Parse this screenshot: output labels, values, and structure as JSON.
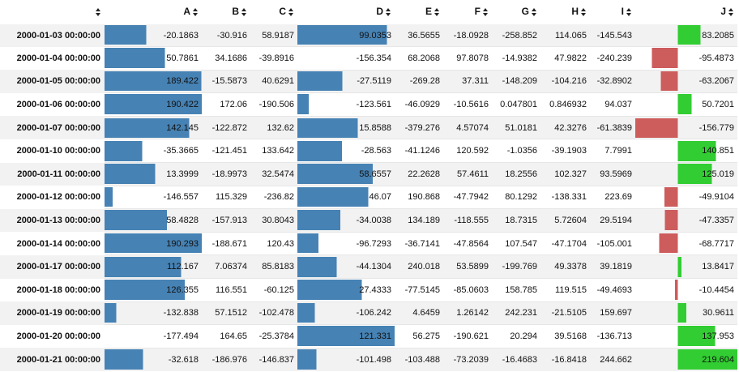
{
  "columns": [
    "A",
    "B",
    "C",
    "D",
    "E",
    "F",
    "G",
    "H",
    "I",
    "J"
  ],
  "colors": {
    "bar_positive_blue": "#4682b4",
    "bar_negative_red": "#cd5c5c",
    "bar_positive_green": "#32cd32"
  },
  "bar_columns": {
    "A": {
      "min": -177.494,
      "max": 190.422,
      "colors": [
        "#4682b4"
      ]
    },
    "D": {
      "min": -156.354,
      "max": 121.331,
      "colors": [
        "#4682b4"
      ]
    },
    "J": {
      "min": -156.779,
      "max": 219.604,
      "colors": [
        "#cd5c5c",
        "#32cd32"
      ],
      "mid": 0
    }
  },
  "rows": [
    {
      "index": "2000-01-03 00:00:00",
      "values": [
        "-20.1863",
        "-30.916",
        "58.9187",
        "99.0353",
        "36.5655",
        "-18.0928",
        "-258.852",
        "114.065",
        "-145.543",
        "83.2085"
      ]
    },
    {
      "index": "2000-01-04 00:00:00",
      "values": [
        "50.7861",
        "34.1686",
        "-39.8916",
        "-156.354",
        "68.2068",
        "97.8078",
        "-14.9382",
        "47.9822",
        "-240.239",
        "-95.4873"
      ]
    },
    {
      "index": "2000-01-05 00:00:00",
      "values": [
        "189.422",
        "-15.5873",
        "40.6291",
        "-27.5119",
        "-269.28",
        "37.311",
        "-148.209",
        "-104.216",
        "-32.8902",
        "-63.2067"
      ]
    },
    {
      "index": "2000-01-06 00:00:00",
      "values": [
        "190.422",
        "172.06",
        "-190.506",
        "-123.561",
        "-46.0929",
        "-10.5616",
        "0.047801",
        "0.846932",
        "94.037",
        "50.7201"
      ]
    },
    {
      "index": "2000-01-07 00:00:00",
      "values": [
        "142.145",
        "-122.872",
        "132.62",
        "15.8588",
        "-379.276",
        "4.57074",
        "51.0181",
        "42.3276",
        "-61.3839",
        "-156.779"
      ]
    },
    {
      "index": "2000-01-10 00:00:00",
      "values": [
        "-35.3665",
        "-121.451",
        "133.642",
        "-28.563",
        "-41.1246",
        "120.592",
        "-1.0356",
        "-39.1903",
        "7.7991",
        "140.851"
      ]
    },
    {
      "index": "2000-01-11 00:00:00",
      "values": [
        "13.3999",
        "-18.9973",
        "32.5474",
        "58.6557",
        "22.2628",
        "57.4611",
        "18.2556",
        "102.327",
        "93.5969",
        "125.019"
      ]
    },
    {
      "index": "2000-01-12 00:00:00",
      "values": [
        "-146.557",
        "115.329",
        "-236.82",
        "46.07",
        "190.868",
        "-47.7942",
        "80.1292",
        "-138.331",
        "223.69",
        "-49.9104"
      ]
    },
    {
      "index": "2000-01-13 00:00:00",
      "values": [
        "58.4828",
        "-157.913",
        "30.8043",
        "-34.0038",
        "134.189",
        "-118.555",
        "18.7315",
        "5.72604",
        "29.5194",
        "-47.3357"
      ]
    },
    {
      "index": "2000-01-14 00:00:00",
      "values": [
        "190.293",
        "-188.671",
        "120.43",
        "-96.7293",
        "-36.7141",
        "-47.8564",
        "107.547",
        "-47.1704",
        "-105.001",
        "-68.7717"
      ]
    },
    {
      "index": "2000-01-17 00:00:00",
      "values": [
        "112.167",
        "7.06374",
        "85.8183",
        "-44.1304",
        "240.018",
        "53.5899",
        "-199.769",
        "49.3378",
        "39.1819",
        "13.8417"
      ]
    },
    {
      "index": "2000-01-18 00:00:00",
      "values": [
        "126.355",
        "116.551",
        "-60.125",
        "27.4333",
        "-77.5145",
        "-85.0603",
        "158.785",
        "119.515",
        "-49.4693",
        "-10.4454"
      ]
    },
    {
      "index": "2000-01-19 00:00:00",
      "values": [
        "-132.838",
        "57.1512",
        "-102.478",
        "-106.242",
        "4.6459",
        "1.26142",
        "242.231",
        "-21.5105",
        "159.697",
        "30.9611"
      ]
    },
    {
      "index": "2000-01-20 00:00:00",
      "values": [
        "-177.494",
        "164.65",
        "-25.3784",
        "121.331",
        "56.275",
        "-190.621",
        "20.294",
        "39.5168",
        "-136.713",
        "137.953"
      ]
    },
    {
      "index": "2000-01-21 00:00:00",
      "values": [
        "-32.618",
        "-186.976",
        "-146.837",
        "-101.498",
        "-103.488",
        "-73.2039",
        "-16.4683",
        "-16.8418",
        "244.662",
        "219.604"
      ]
    }
  ]
}
